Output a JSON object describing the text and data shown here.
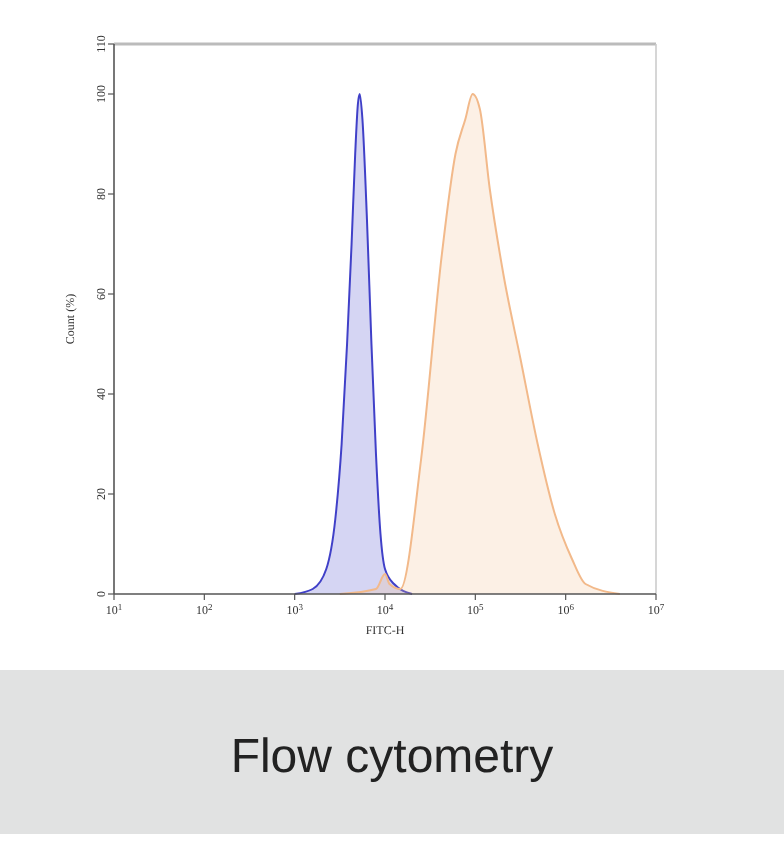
{
  "chart_data": {
    "type": "area",
    "xlabel": "FITC-H",
    "ylabel": "Count (%)",
    "log": "x",
    "xlim": [
      10,
      10000000
    ],
    "ylim": [
      0,
      110
    ],
    "xticks": [
      {
        "value": 10,
        "label": "10$^{1}$"
      },
      {
        "value": 100,
        "label": "10$^{2}$"
      },
      {
        "value": 1000,
        "label": "10$^{3}$"
      },
      {
        "value": 10000,
        "label": "10$^{4}$"
      },
      {
        "value": 100000,
        "label": "10$^{5}$"
      },
      {
        "value": 1000000,
        "label": "10$^{6}$"
      },
      {
        "value": 10000000,
        "label": "10$^{7}$"
      }
    ],
    "yticks": [
      0,
      20,
      40,
      60,
      80,
      100,
      110
    ],
    "grid": false,
    "series": [
      {
        "color": "#4040c8",
        "x": [
          1000,
          1585,
          2239,
          2818,
          3311,
          3802,
          4266,
          4677,
          5012,
          5248,
          5623,
          6310,
          7079,
          7943,
          8913,
          10000,
          12589,
          19953
        ],
        "values": [
          0,
          1,
          5,
          15,
          30,
          50,
          70,
          88,
          98,
          100,
          95,
          75,
          50,
          28,
          12,
          5,
          2,
          0
        ]
      },
      {
        "color": "#f2b98a",
        "x": [
          3162,
          7943,
          10000,
          11220,
          14791,
          25119,
          42658,
          60256,
          77625,
          93325,
          112202,
          144544,
          204174,
          316228,
          489779,
          758578,
          1174898,
          1659587,
          3981072
        ],
        "values": [
          0,
          1,
          4,
          2,
          1,
          27,
          68,
          88,
          95,
          100,
          97,
          81,
          64,
          47,
          30,
          16,
          7,
          2,
          0
        ]
      }
    ],
    "annotations": [
      "Flow cytometry"
    ]
  }
}
